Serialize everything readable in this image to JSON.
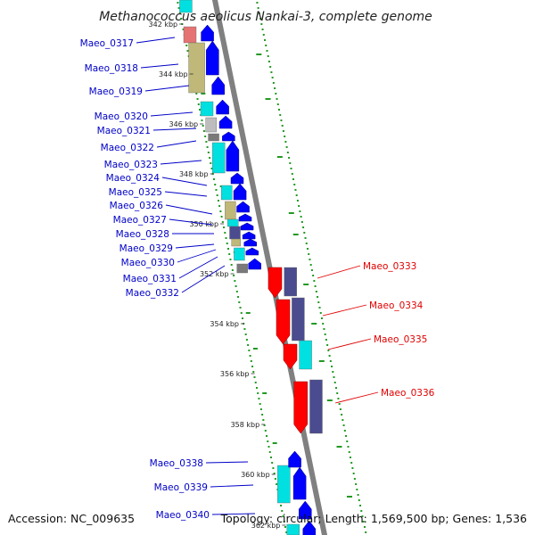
{
  "title": "Methanococcus aeolicus Nankai-3, complete genome",
  "footer": {
    "accession": "Accession: NC_009635",
    "summary": "Topology: circular; Length: 1,569,500 bp; Genes: 1,536"
  },
  "colors": {
    "forward_gene": "#0000ff",
    "reverse_gene": "#ff0000",
    "forward_label": "#0000c8",
    "reverse_label": "#e00000",
    "backbone": "#808080",
    "gc_skew_marks": "#229922",
    "cog_cyan": "#00e0e0",
    "cog_khaki": "#bfb878",
    "cog_pink": "#e57373",
    "cog_gray": "#bdbdbd",
    "cog_darkgray": "#7a7a7a",
    "cog_slate": "#4b4b8f"
  },
  "ticks": [
    "342 kbp",
    "344 kbp",
    "346 kbp",
    "348 kbp",
    "350 kbp",
    "352 kbp",
    "354 kbp",
    "356 kbp",
    "358 kbp",
    "360 kbp",
    "362 kbp"
  ],
  "genes": [
    {
      "name": "Maeo_0317",
      "strand": "+"
    },
    {
      "name": "Maeo_0318",
      "strand": "+"
    },
    {
      "name": "Maeo_0319",
      "strand": "+"
    },
    {
      "name": "Maeo_0320",
      "strand": "+"
    },
    {
      "name": "Maeo_0321",
      "strand": "+"
    },
    {
      "name": "Maeo_0322",
      "strand": "+"
    },
    {
      "name": "Maeo_0323",
      "strand": "+"
    },
    {
      "name": "Maeo_0324",
      "strand": "+"
    },
    {
      "name": "Maeo_0325",
      "strand": "+"
    },
    {
      "name": "Maeo_0326",
      "strand": "+"
    },
    {
      "name": "Maeo_0327",
      "strand": "+"
    },
    {
      "name": "Maeo_0328",
      "strand": "+"
    },
    {
      "name": "Maeo_0329",
      "strand": "+"
    },
    {
      "name": "Maeo_0330",
      "strand": "+"
    },
    {
      "name": "Maeo_0331",
      "strand": "+"
    },
    {
      "name": "Maeo_0332",
      "strand": "+"
    },
    {
      "name": "Maeo_0333",
      "strand": "-"
    },
    {
      "name": "Maeo_0334",
      "strand": "-"
    },
    {
      "name": "Maeo_0335",
      "strand": "-"
    },
    {
      "name": "Maeo_0336",
      "strand": "-"
    },
    {
      "name": "Maeo_0338",
      "strand": "+"
    },
    {
      "name": "Maeo_0339",
      "strand": "+"
    },
    {
      "name": "Maeo_0340",
      "strand": "+"
    }
  ]
}
